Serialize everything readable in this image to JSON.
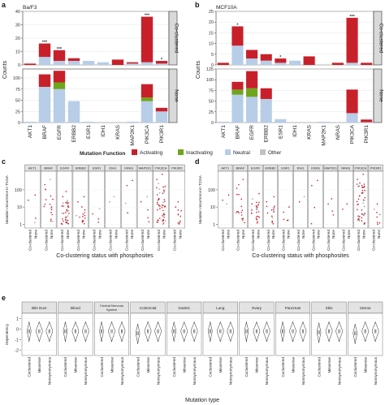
{
  "panels": {
    "a": {
      "letter": "a",
      "title": "Ba/F3"
    },
    "b": {
      "letter": "b",
      "title": "MCF10A"
    },
    "c": {
      "letter": "c"
    },
    "d": {
      "letter": "d"
    },
    "e": {
      "letter": "e"
    }
  },
  "legend": {
    "title": "Mutation Function",
    "items": [
      {
        "label": "Activating",
        "color": "#c8202a"
      },
      {
        "label": "Inactivating",
        "color": "#6fa51c"
      },
      {
        "label": "Neutral",
        "color": "#b7cde8"
      },
      {
        "label": "Other",
        "color": "#c2c2c2"
      }
    ]
  },
  "strips": {
    "top": "Co-clustered",
    "bottom": "None"
  },
  "chart_data": [
    {
      "type": "bar",
      "panel": "a",
      "title": "Ba/F3",
      "ylabel": "Counts",
      "categories": [
        "AKT1",
        "BRAF",
        "EGFR",
        "ERBB2",
        "ESR1",
        "IDH1",
        "KRAS",
        "MAP2K1",
        "PIK3CA",
        "PIK3R1"
      ],
      "facets": [
        {
          "name": "Co-clustered",
          "ylim": [
            0,
            40
          ],
          "yticks": [
            0,
            10,
            20,
            30,
            40
          ],
          "series": [
            {
              "name": "Neutral",
              "values": [
                0,
                6,
                3,
                3,
                3,
                2,
                0,
                1,
                2,
                1
              ]
            },
            {
              "name": "Inactivating",
              "values": [
                0,
                0,
                0,
                0,
                0,
                0,
                0,
                0,
                0,
                0
              ]
            },
            {
              "name": "Activating",
              "values": [
                1,
                10,
                8,
                2,
                0,
                0,
                4,
                1,
                34,
                2
              ]
            }
          ],
          "annotations": [
            {
              "category": "BRAF",
              "text": "***"
            },
            {
              "category": "EGFR",
              "text": "***"
            },
            {
              "category": "PIK3CA",
              "text": "***"
            },
            {
              "category": "PIK3R1",
              "text": "*"
            }
          ]
        },
        {
          "name": "None",
          "ylim": [
            0,
            120
          ],
          "yticks": [
            0,
            25,
            50,
            75,
            100
          ],
          "series": [
            {
              "name": "Neutral",
              "values": [
                2,
                80,
                75,
                48,
                2,
                0,
                0,
                2,
                48,
                25
              ]
            },
            {
              "name": "Inactivating",
              "values": [
                0,
                0,
                15,
                0,
                0,
                0,
                0,
                0,
                8,
                0
              ]
            },
            {
              "name": "Activating",
              "values": [
                0,
                28,
                26,
                0,
                0,
                0,
                0,
                0,
                30,
                8
              ]
            }
          ]
        }
      ]
    },
    {
      "type": "bar",
      "panel": "b",
      "title": "MCF10A",
      "ylabel": "Counts",
      "categories": [
        "AKT1",
        "BRAF",
        "EGFR",
        "ERBB2",
        "ESR1",
        "IDH1",
        "KRAS",
        "MAP2K1",
        "NRAS",
        "PIK3CA",
        "PIK3R1"
      ],
      "facets": [
        {
          "name": "Co-clustered",
          "ylim": [
            0,
            25
          ],
          "yticks": [
            0,
            5,
            10,
            15,
            20,
            25
          ],
          "series": [
            {
              "name": "Neutral",
              "values": [
                0,
                9,
                3,
                2,
                1,
                2,
                0,
                0,
                0,
                1,
                0
              ]
            },
            {
              "name": "Inactivating",
              "values": [
                0,
                0,
                0,
                0,
                0,
                0,
                0,
                0,
                0,
                0,
                0
              ]
            },
            {
              "name": "Activating",
              "values": [
                1,
                9,
                4,
                3,
                2,
                0,
                4,
                0,
                1,
                21,
                1
              ]
            }
          ],
          "annotations": [
            {
              "category": "BRAF",
              "text": "*"
            },
            {
              "category": "ESR1",
              "text": "*"
            },
            {
              "category": "PIK3CA",
              "text": "***"
            }
          ]
        },
        {
          "name": "None",
          "ylim": [
            0,
            125
          ],
          "yticks": [
            0,
            25,
            50,
            75,
            100,
            125
          ],
          "series": [
            {
              "name": "Neutral",
              "values": [
                2,
                65,
                60,
                55,
                8,
                0,
                0,
                2,
                0,
                22,
                1
              ]
            },
            {
              "name": "Inactivating",
              "values": [
                0,
                12,
                20,
                0,
                0,
                0,
                0,
                0,
                0,
                0,
                0
              ]
            },
            {
              "name": "Activating",
              "values": [
                0,
                18,
                40,
                25,
                0,
                0,
                0,
                0,
                0,
                55,
                6
              ]
            }
          ]
        }
      ]
    },
    {
      "type": "scatter",
      "panel": "c",
      "ylabel": "Mutation recurrence in TCGA",
      "xlabel": "Co-clustering status with phosphosites",
      "yscale": "log",
      "yticks": [
        1,
        10,
        100
      ],
      "groups": [
        "Co-clustered",
        "None"
      ],
      "facets": [
        "AKT1",
        "BRAF",
        "EGFR",
        "ERBB2",
        "ESR1",
        "IDH1",
        "KRAS",
        "MAP2K1",
        "PIK3CA",
        "PIK3R1"
      ],
      "points_per_group": [
        [
          1,
          3
        ],
        [
          6,
          12
        ],
        [
          10,
          26
        ],
        [
          3,
          14
        ],
        [
          1,
          3
        ],
        [
          1,
          1
        ],
        [
          3,
          1
        ],
        [
          1,
          4
        ],
        [
          22,
          30
        ],
        [
          1,
          10
        ]
      ],
      "max_recurrence": [
        50,
        400,
        80,
        40,
        8,
        40,
        350,
        40,
        800,
        20
      ]
    },
    {
      "type": "scatter",
      "panel": "d",
      "ylabel": "Mutation recurrence in TCGA",
      "xlabel": "Co-clustering status with phosphosites",
      "yscale": "log",
      "yticks": [
        1,
        10,
        100
      ],
      "groups": [
        "Co-clustered",
        "None"
      ],
      "facets": [
        "AKT1",
        "BRAF",
        "EGFR",
        "ERBB2",
        "ESR1",
        "IDH1",
        "KRAS",
        "MAP2K1",
        "NRAS",
        "PIK3CA",
        "PIK3R1"
      ],
      "points_per_group": [
        [
          1,
          2
        ],
        [
          8,
          10
        ],
        [
          5,
          22
        ],
        [
          3,
          12
        ],
        [
          2,
          3
        ],
        [
          1,
          1
        ],
        [
          3,
          1
        ],
        [
          1,
          3
        ],
        [
          1,
          1
        ],
        [
          20,
          30
        ],
        [
          1,
          8
        ]
      ],
      "max_recurrence": [
        50,
        400,
        60,
        40,
        10,
        40,
        350,
        30,
        15,
        800,
        15
      ]
    },
    {
      "type": "violin",
      "panel": "e",
      "ylabel": "Dependency",
      "xlabel": "Mutation type",
      "categories": [
        "Coclustered",
        "Missense",
        "Nonsynonymous"
      ],
      "yticks": [
        -2,
        -1,
        0,
        1
      ],
      "ylim": [
        -2.5,
        1.5
      ],
      "facets": [
        "Bile Duct",
        "Blood",
        "Central Nervous System",
        "Colorectal",
        "Gastric",
        "Lung",
        "Ovary",
        "Pancreas",
        "Skin",
        "Uterus"
      ],
      "medians": [
        [
          -0.2,
          -0.2,
          -0.2
        ],
        [
          -0.2,
          -0.2,
          -0.2
        ],
        [
          -0.2,
          -0.2,
          -0.2
        ],
        [
          -0.4,
          -0.2,
          -0.2
        ],
        [
          -0.2,
          -0.2,
          -0.2
        ],
        [
          -0.2,
          -0.2,
          -0.2
        ],
        [
          -0.2,
          -0.2,
          -0.2
        ],
        [
          -0.2,
          -0.2,
          -0.2
        ],
        [
          -0.3,
          -0.2,
          -0.2
        ],
        [
          -0.4,
          -0.2,
          -0.2
        ]
      ]
    }
  ]
}
